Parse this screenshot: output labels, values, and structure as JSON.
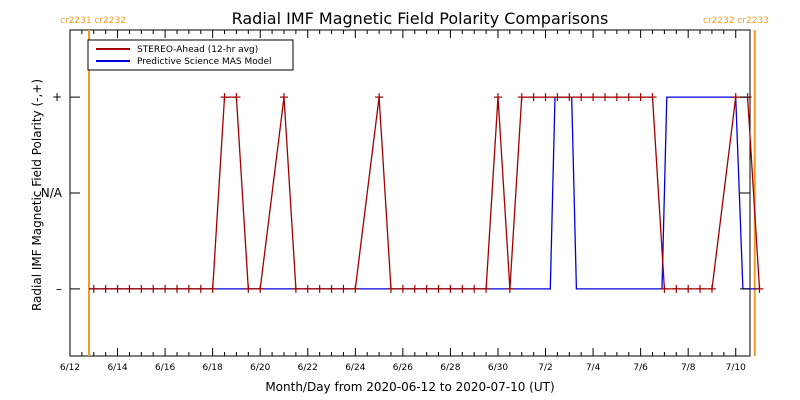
{
  "chart_data": {
    "type": "line",
    "title": "Radial IMF Magnetic Field Polarity Comparisons",
    "xlabel": "Month/Day from 2020-06-12 to 2020-07-10 (UT)",
    "ylabel": "Radial IMF Magnetic Field Polarity (-,+)",
    "x_unit": "days",
    "xlim": [
      0,
      28.6
    ],
    "ylim": [
      -1.7,
      1.7
    ],
    "x_ticks": [
      {
        "x": 0,
        "label": "6/12"
      },
      {
        "x": 2,
        "label": "6/14"
      },
      {
        "x": 4,
        "label": "6/16"
      },
      {
        "x": 6,
        "label": "6/18"
      },
      {
        "x": 8,
        "label": "6/20"
      },
      {
        "x": 10,
        "label": "6/22"
      },
      {
        "x": 12,
        "label": "6/24"
      },
      {
        "x": 14,
        "label": "6/26"
      },
      {
        "x": 16,
        "label": "6/28"
      },
      {
        "x": 18,
        "label": "6/30"
      },
      {
        "x": 20,
        "label": "7/2"
      },
      {
        "x": 22,
        "label": "7/4"
      },
      {
        "x": 24,
        "label": "7/6"
      },
      {
        "x": 26,
        "label": "7/8"
      },
      {
        "x": 28,
        "label": "7/10"
      }
    ],
    "y_ticks": [
      {
        "y": 1,
        "label": "+"
      },
      {
        "y": 0,
        "label": "N/A"
      },
      {
        "y": -1,
        "label": "–"
      }
    ],
    "legend_position": "top-left",
    "series": [
      {
        "name": "STEREO-Ahead (12-hr avg)",
        "color": "#a00000",
        "marker": "plus",
        "points": [
          [
            1.0,
            -1
          ],
          [
            1.5,
            -1
          ],
          [
            2.0,
            -1
          ],
          [
            2.5,
            -1
          ],
          [
            3.0,
            -1
          ],
          [
            3.5,
            -1
          ],
          [
            4.0,
            -1
          ],
          [
            4.5,
            -1
          ],
          [
            5.0,
            -1
          ],
          [
            5.5,
            -1
          ],
          [
            6.0,
            -1
          ],
          [
            6.5,
            1
          ],
          [
            7.0,
            1
          ],
          [
            7.5,
            -1
          ],
          [
            8.0,
            -1
          ],
          [
            9.0,
            1
          ],
          [
            9.5,
            -1
          ],
          [
            10.0,
            -1
          ],
          [
            10.5,
            -1
          ],
          [
            11.0,
            -1
          ],
          [
            11.5,
            -1
          ],
          [
            12.0,
            -1
          ],
          [
            13.0,
            1
          ],
          [
            13.5,
            -1
          ],
          [
            14.0,
            -1
          ],
          [
            14.5,
            -1
          ],
          [
            15.0,
            -1
          ],
          [
            15.5,
            -1
          ],
          [
            16.0,
            -1
          ],
          [
            16.5,
            -1
          ],
          [
            17.0,
            -1
          ],
          [
            17.5,
            -1
          ],
          [
            18.0,
            1
          ],
          [
            18.5,
            -1
          ],
          [
            19.0,
            1
          ],
          [
            19.5,
            1
          ],
          [
            20.0,
            1
          ],
          [
            20.5,
            1
          ],
          [
            21.0,
            1
          ],
          [
            21.5,
            1
          ],
          [
            22.0,
            1
          ],
          [
            22.5,
            1
          ],
          [
            23.0,
            1
          ],
          [
            23.5,
            1
          ],
          [
            24.0,
            1
          ],
          [
            24.5,
            1
          ],
          [
            25.0,
            -1
          ],
          [
            25.5,
            -1
          ],
          [
            26.0,
            -1
          ],
          [
            26.5,
            -1
          ],
          [
            27.0,
            -1
          ],
          [
            28.0,
            1
          ],
          [
            28.5,
            1
          ],
          [
            29.0,
            -1
          ]
        ]
      },
      {
        "name": "Predictive Science MAS Model",
        "color": "#0000e0",
        "marker": "none",
        "points": [
          [
            0.8,
            -1
          ],
          [
            20.2,
            -1
          ],
          [
            20.4,
            1
          ],
          [
            21.1,
            1
          ],
          [
            21.3,
            -1
          ],
          [
            24.9,
            -1
          ],
          [
            25.1,
            1
          ],
          [
            28.0,
            1
          ],
          [
            28.3,
            -1
          ],
          [
            29.0,
            -1
          ]
        ]
      }
    ],
    "vertical_markers": [
      {
        "x": 0.8,
        "color": "#f29b24",
        "label": "cr2231 cr2232"
      },
      {
        "x": 28.8,
        "color": "#f29b24",
        "label": "cr2232 cr2233"
      }
    ]
  }
}
